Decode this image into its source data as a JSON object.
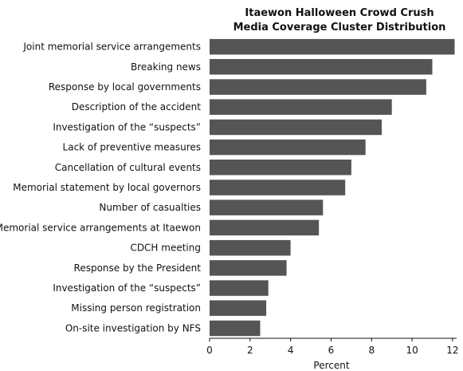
{
  "chart_data": {
    "type": "bar",
    "orientation": "horizontal",
    "title_lines": [
      "Itaewon Halloween Crowd Crush",
      "Media Coverage Cluster Distribution"
    ],
    "xlabel": "Percent",
    "ylabel": "",
    "xlim": [
      0,
      12.2
    ],
    "xticks": [
      0,
      2,
      4,
      6,
      8,
      10,
      12
    ],
    "grid": false,
    "bar_color": "#555555",
    "categories": [
      "Joint memorial service arrangements",
      "Breaking news",
      "Response by local governments",
      "Description of the accident",
      "Investigation of the “suspects”",
      "Lack of preventive measures",
      "Cancellation of cultural events",
      "Memorial statement by local governors",
      "Number of casualties",
      "Memorial service arrangements at Itaewon",
      "CDCH meeting",
      "Response by the President",
      "Investigation of the “suspects”",
      "Missing person registration",
      "On-site investigation by NFS"
    ],
    "values": [
      12.1,
      11.0,
      10.7,
      9.0,
      8.5,
      7.7,
      7.0,
      6.7,
      5.6,
      5.4,
      4.0,
      3.8,
      2.9,
      2.8,
      2.5
    ]
  }
}
